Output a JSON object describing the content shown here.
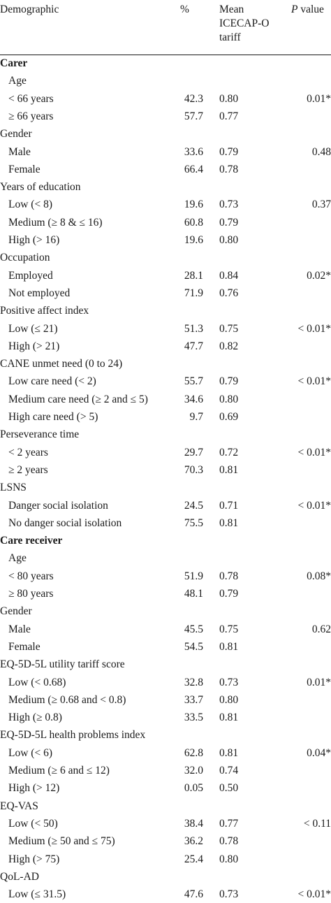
{
  "header": {
    "demographic": "Demographic",
    "percent": "%",
    "mean_lines": [
      "Mean",
      "ICECAP-O",
      "tariff"
    ],
    "p_italic": "P",
    "p_rest": " value"
  },
  "rows": [
    {
      "label": "Carer",
      "kind": "section"
    },
    {
      "label": "Age",
      "kind": "sub"
    },
    {
      "label": "< 66 years",
      "kind": "sub",
      "pct": "42.3",
      "mean": "0.80",
      "p": "0.01*"
    },
    {
      "label": "≥ 66 years",
      "kind": "sub",
      "pct": "57.7",
      "mean": "0.77"
    },
    {
      "label": "Gender",
      "kind": "group"
    },
    {
      "label": "Male",
      "kind": "sub",
      "pct": "33.6",
      "mean": "0.79",
      "p": "0.48"
    },
    {
      "label": "Female",
      "kind": "sub",
      "pct": "66.4",
      "mean": "0.78"
    },
    {
      "label": "Years of education",
      "kind": "group"
    },
    {
      "label": "Low (< 8)",
      "kind": "sub",
      "pct": "19.6",
      "mean": "0.73",
      "p": "0.37"
    },
    {
      "label": "Medium (≥ 8 & ≤ 16)",
      "kind": "sub",
      "pct": "60.8",
      "mean": "0.79"
    },
    {
      "label": "High (> 16)",
      "kind": "sub",
      "pct": "19.6",
      "mean": "0.80"
    },
    {
      "label": "Occupation",
      "kind": "group"
    },
    {
      "label": "Employed",
      "kind": "sub",
      "pct": "28.1",
      "mean": "0.84",
      "p": "0.02*"
    },
    {
      "label": "Not employed",
      "kind": "sub",
      "pct": "71.9",
      "mean": "0.76"
    },
    {
      "label": "Positive affect index",
      "kind": "group"
    },
    {
      "label": "Low (≤ 21)",
      "kind": "sub",
      "pct": "51.3",
      "mean": "0.75",
      "p": "< 0.01*"
    },
    {
      "label": "High (> 21)",
      "kind": "sub",
      "pct": "47.7",
      "mean": "0.82"
    },
    {
      "label": "CANE unmet need (0 to 24)",
      "kind": "group"
    },
    {
      "label": "Low care need (< 2)",
      "kind": "sub",
      "pct": "55.7",
      "mean": "0.79",
      "p": "< 0.01*"
    },
    {
      "label": "Medium care need (≥ 2 and ≤ 5)",
      "kind": "sub",
      "pct": "34.6",
      "mean": "0.80"
    },
    {
      "label": "High care need (> 5)",
      "kind": "sub",
      "pct": "9.7",
      "mean": "0.69"
    },
    {
      "label": "Perseverance time",
      "kind": "group"
    },
    {
      "label": "< 2 years",
      "kind": "sub",
      "pct": "29.7",
      "mean": "0.72",
      "p": "< 0.01*"
    },
    {
      "label": "≥ 2 years",
      "kind": "sub",
      "pct": "70.3",
      "mean": "0.81"
    },
    {
      "label": "LSNS",
      "kind": "group"
    },
    {
      "label": "Danger social isolation",
      "kind": "sub",
      "pct": "24.5",
      "mean": "0.71",
      "p": "< 0.01*"
    },
    {
      "label": "No danger social isolation",
      "kind": "sub",
      "pct": "75.5",
      "mean": "0.81"
    },
    {
      "label": "Care receiver",
      "kind": "section"
    },
    {
      "label": "Age",
      "kind": "sub"
    },
    {
      "label": "< 80 years",
      "kind": "sub",
      "pct": "51.9",
      "mean": "0.78",
      "p": "0.08*"
    },
    {
      "label": "≥ 80 years",
      "kind": "sub",
      "pct": "48.1",
      "mean": "0.79"
    },
    {
      "label": "Gender",
      "kind": "group"
    },
    {
      "label": "Male",
      "kind": "sub",
      "pct": "45.5",
      "mean": "0.75",
      "p": "0.62"
    },
    {
      "label": "Female",
      "kind": "sub",
      "pct": "54.5",
      "mean": "0.81"
    },
    {
      "label": "EQ-5D-5L utility tariff score",
      "kind": "group"
    },
    {
      "label": "Low (< 0.68)",
      "kind": "sub",
      "pct": "32.8",
      "mean": "0.73",
      "p": "0.01*"
    },
    {
      "label": "Medium (≥ 0.68 and < 0.8)",
      "kind": "sub",
      "pct": "33.7",
      "mean": "0.80"
    },
    {
      "label": "High (≥ 0.8)",
      "kind": "sub",
      "pct": "33.5",
      "mean": "0.81"
    },
    {
      "label": "EQ-5D-5L health problems index",
      "kind": "group"
    },
    {
      "label": "Low (< 6)",
      "kind": "sub",
      "pct": "62.8",
      "mean": "0.81",
      "p": "0.04*"
    },
    {
      "label": "Medium (≥ 6 and ≤ 12)",
      "kind": "sub",
      "pct": "32.0",
      "mean": "0.74"
    },
    {
      "label": "High (> 12)",
      "kind": "sub",
      "pct": "0.05",
      "mean": "0.50"
    },
    {
      "label": "EQ-VAS",
      "kind": "group"
    },
    {
      "label": "Low (< 50)",
      "kind": "sub",
      "pct": "38.4",
      "mean": "0.77",
      "p": "< 0.11"
    },
    {
      "label": "Medium (≥ 50 and ≤ 75)",
      "kind": "sub",
      "pct": "36.2",
      "mean": "0.78"
    },
    {
      "label": "High (> 75)",
      "kind": "sub",
      "pct": "25.4",
      "mean": "0.80"
    },
    {
      "label": "QoL-AD",
      "kind": "group"
    },
    {
      "label": "Low (≤ 31.5)",
      "kind": "sub",
      "pct": "47.6",
      "mean": "0.73",
      "p": "< 0.01*"
    }
  ]
}
